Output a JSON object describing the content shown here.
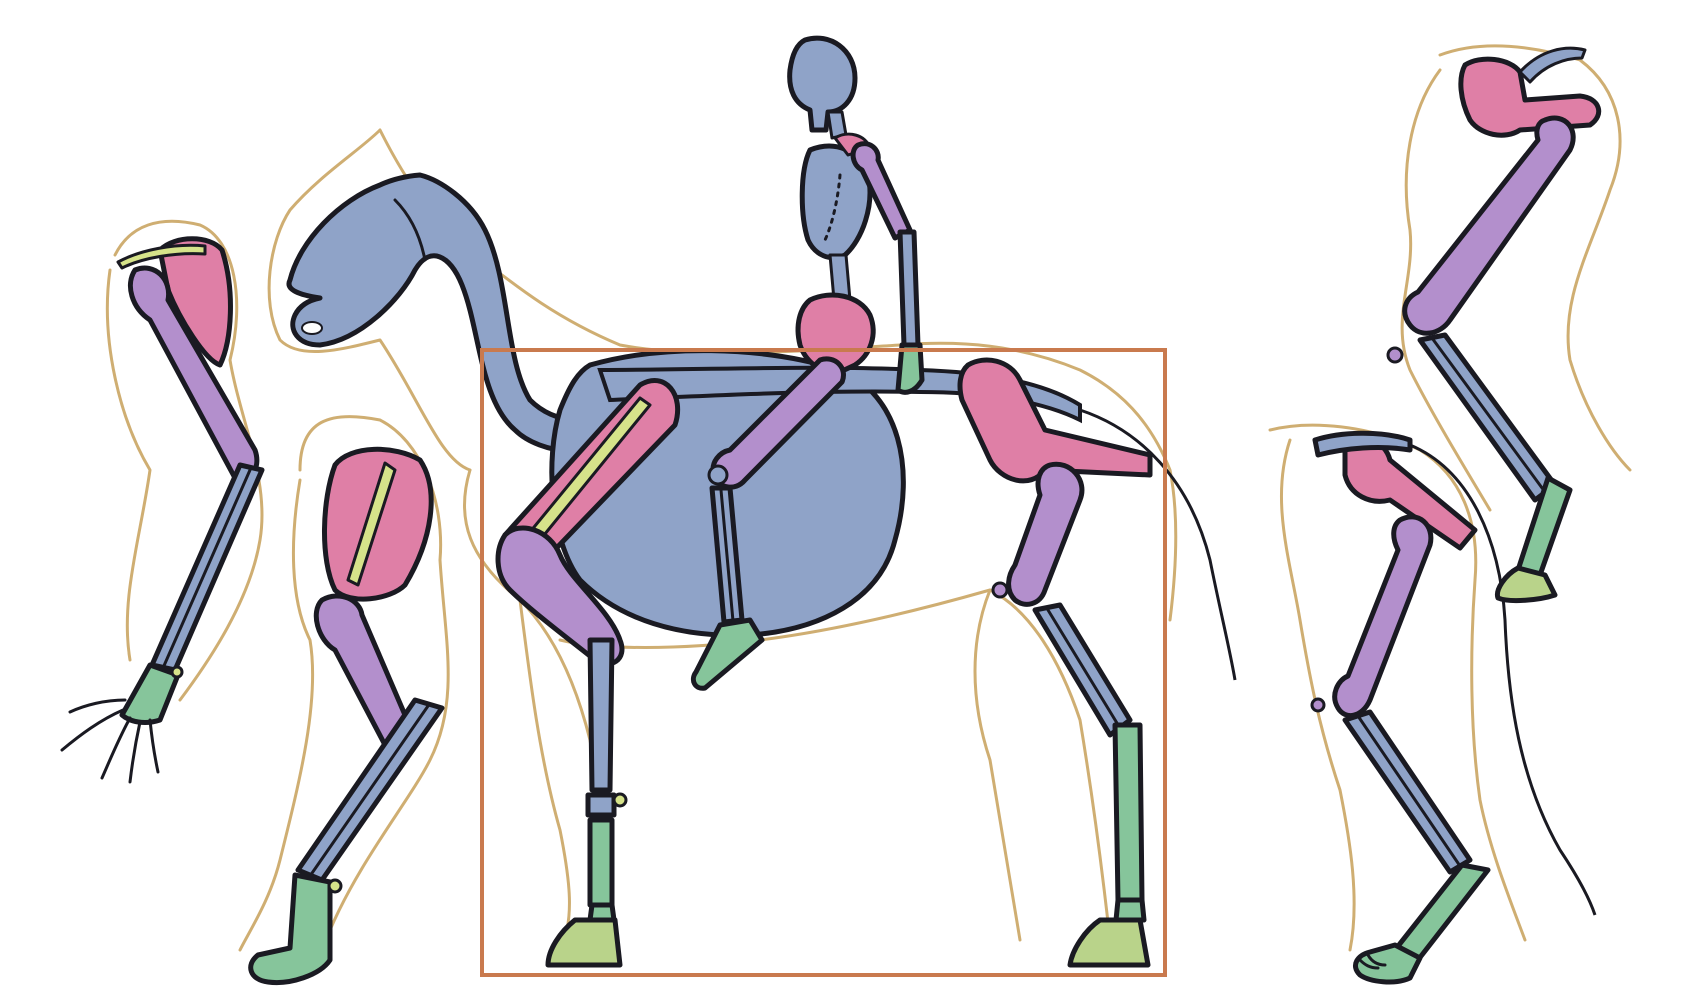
{
  "palette": {
    "bone_blue": "#8fa3c8",
    "bone_pink": "#df7fa6",
    "bone_purple": "#b38fcc",
    "bone_green": "#86c59b",
    "accent_yellow": "#d6e38a",
    "contour_tan": "#cfae72",
    "frame_orange": "#c97a4e",
    "ink": "#1a1a22"
  },
  "figures": {
    "human_arm": "human-arm-skeleton",
    "human_leg": "human-leg-skeleton",
    "horse_and_rider": "horse-and-rider-skeleton",
    "horse_hind_leg": "horse-hind-leg-skeleton",
    "horse_hind_leg_raised": "horse-hind-leg-raised-skeleton"
  }
}
